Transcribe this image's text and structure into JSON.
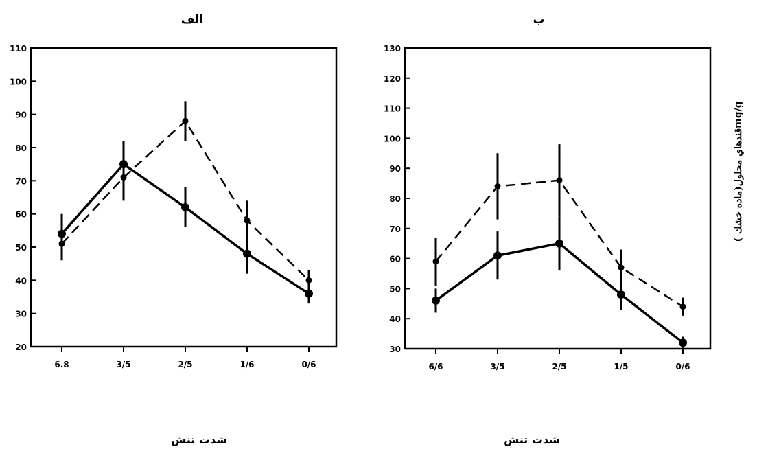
{
  "figure": {
    "y_axis_title": "قندهاي محلول(ماده خشك )mg/g"
  },
  "chart_data": [
    {
      "type": "line",
      "title": "الف",
      "xlabel": "شدت تنش",
      "ylabel": "",
      "categories": [
        "6.8",
        "3/5",
        "2/5",
        "1/6",
        "0/6"
      ],
      "ylim": [
        20,
        110
      ],
      "yticks": [
        20,
        30,
        40,
        50,
        60,
        70,
        80,
        90,
        100,
        110
      ],
      "ytick_labels": [
        "20",
        "30",
        "40",
        "50",
        "60",
        "70",
        "80",
        "90",
        "100",
        "110"
      ],
      "grid": false,
      "series": [
        {
          "style": "solid",
          "values": [
            54,
            75,
            62,
            48,
            36
          ],
          "errors": [
            6,
            7,
            6,
            6,
            3
          ]
        },
        {
          "style": "dashed",
          "values": [
            51,
            71,
            88,
            58,
            40
          ],
          "errors": [
            5,
            7,
            6,
            6,
            3
          ]
        }
      ]
    },
    {
      "type": "line",
      "title": "ب",
      "xlabel": "شدت تنش",
      "ylabel": "",
      "categories": [
        "6/6",
        "3/5",
        "2/5",
        "1/5",
        "0/6"
      ],
      "ylim": [
        30,
        130
      ],
      "yticks": [
        30,
        40,
        50,
        60,
        70,
        80,
        90,
        100,
        110,
        120,
        130
      ],
      "ytick_labels": [
        "30",
        "40",
        "50",
        "60",
        "70",
        "80",
        "90",
        "100",
        "110",
        "120",
        "130"
      ],
      "grid": false,
      "series": [
        {
          "style": "solid",
          "values": [
            46,
            61,
            65,
            48,
            32
          ],
          "errors": [
            4,
            8,
            9,
            5,
            2
          ]
        },
        {
          "style": "dashed",
          "values": [
            59,
            84,
            86,
            57,
            44
          ],
          "errors": [
            8,
            11,
            12,
            6,
            3
          ]
        }
      ]
    }
  ]
}
